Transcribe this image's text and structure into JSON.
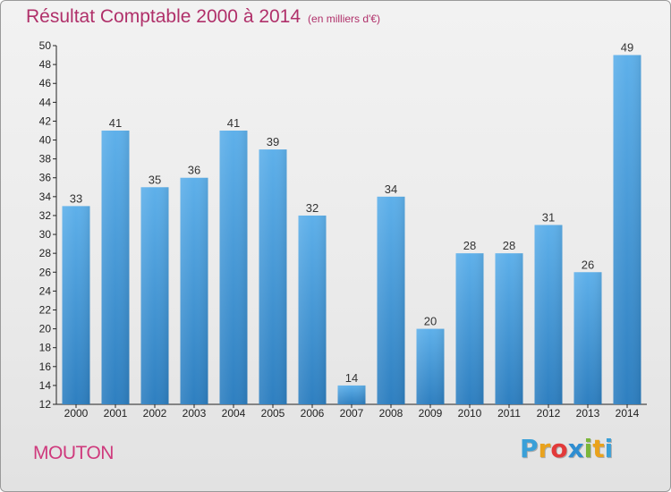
{
  "title": "Résultat Comptable 2000 à 2014",
  "unit_note": "(en milliers d'€)",
  "commune": "MOUTON",
  "logo": {
    "letters": [
      "P",
      "r",
      "o",
      "x",
      "i",
      "t",
      "i"
    ],
    "colors": [
      "#3aa0d8",
      "#e9a21c",
      "#e23a3a",
      "#2e8dd1",
      "#7bb63a",
      "#e9a21c",
      "#3aa0d8"
    ]
  },
  "colors": {
    "title": "#b0306a",
    "bar_top": "#5eb0ea",
    "bar_bottom": "#2e7fc0",
    "axis": "#222222"
  },
  "chart_data": {
    "type": "bar",
    "categories": [
      "2000",
      "2001",
      "2002",
      "2003",
      "2004",
      "2005",
      "2006",
      "2007",
      "2008",
      "2009",
      "2010",
      "2011",
      "2012",
      "2013",
      "2014"
    ],
    "values": [
      33,
      41,
      35,
      36,
      41,
      39,
      32,
      14,
      34,
      20,
      28,
      28,
      31,
      26,
      49
    ],
    "ylim": [
      12,
      50
    ],
    "yticks": [
      12,
      14,
      16,
      18,
      20,
      22,
      24,
      26,
      28,
      30,
      32,
      34,
      36,
      38,
      40,
      42,
      44,
      46,
      48,
      50
    ],
    "grid": false,
    "legend": "none"
  }
}
